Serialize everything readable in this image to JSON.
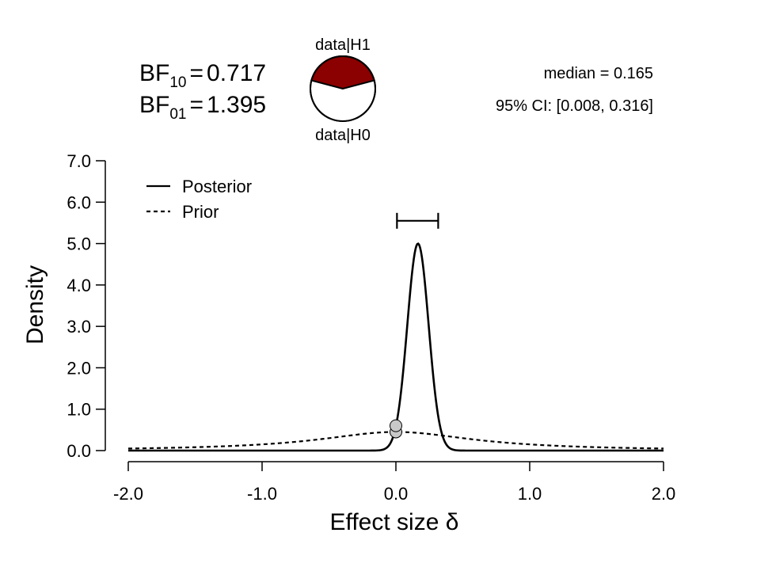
{
  "header": {
    "bf10": {
      "base": "BF",
      "sub": "10",
      "eq": "=",
      "value": "0.717"
    },
    "bf01": {
      "base": "BF",
      "sub": "01",
      "eq": "=",
      "value": "1.395"
    },
    "pie_top_label": "data|H1",
    "pie_bottom_label": "data|H0",
    "pie_h1_fraction": 0.4176,
    "median_text": "median = 0.165",
    "ci_text": "95% CI: [0.008, 0.316]"
  },
  "colors": {
    "h1_wedge": "#8b0000",
    "h0_wedge": "#ffffff",
    "line": "#000000",
    "point_fill": "#c8c8c8"
  },
  "chart_data": {
    "type": "line",
    "xlabel": "Effect size",
    "xlabel_symbol": "δ",
    "ylabel": "Density",
    "xlim": [
      -2.0,
      2.0
    ],
    "ylim": [
      0.0,
      7.0
    ],
    "x_ticks": [
      -2.0,
      -1.0,
      0.0,
      1.0,
      2.0
    ],
    "x_tick_labels": [
      "-2.0",
      "-1.0",
      "0.0",
      "1.0",
      "2.0"
    ],
    "y_ticks": [
      0,
      1,
      2,
      3,
      4,
      5,
      6,
      7
    ],
    "y_tick_labels": [
      "0.0",
      "1.0",
      "2.0",
      "3.0",
      "4.0",
      "5.0",
      "6.0",
      "7.0"
    ],
    "legend": [
      "Posterior",
      "Prior"
    ],
    "legend_position": "top-left",
    "series": [
      {
        "name": "Posterior",
        "style": "solid",
        "distribution": "normal",
        "mean": 0.165,
        "sd": 0.0798
      },
      {
        "name": "Prior",
        "style": "dashed",
        "distribution": "cauchy",
        "location": 0,
        "scale": 0.707
      }
    ],
    "points": [
      {
        "x": 0.0,
        "y": 0.6
      },
      {
        "x": 0.0,
        "y": 0.45
      }
    ],
    "credible_interval": {
      "lower": 0.008,
      "upper": 0.316,
      "y": 5.55
    }
  }
}
